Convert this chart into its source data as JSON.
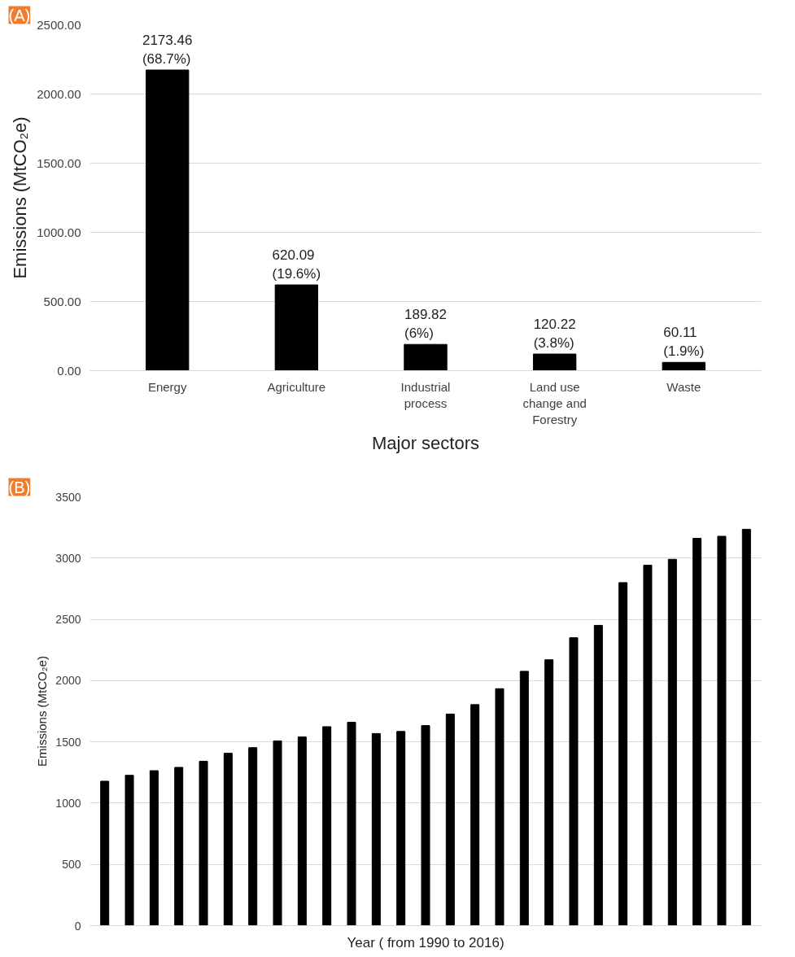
{
  "chart_data": [
    {
      "type": "bar",
      "annotations": [
        "(A)"
      ],
      "xlabel": "Major sectors",
      "ylabel": "Emissions (MtCO₂e)",
      "categories": [
        "Energy",
        "Agriculture",
        "Industrial process",
        "Land use change and Forestry",
        "Waste"
      ],
      "values": [
        2173.46,
        620.09,
        189.82,
        120.22,
        60.11
      ],
      "value_labels": [
        "2173.46\n(68.7%)",
        "620.09\n(19.6%)",
        "189.82\n(6%)",
        "120.22\n(3.8%)",
        "60.11\n(1.9%)"
      ],
      "color": "#000000",
      "ylim": [
        0,
        2500
      ],
      "yticks": [
        {
          "value": 0,
          "label": "0.00"
        },
        {
          "value": 500,
          "label": "500.00"
        },
        {
          "value": 1000,
          "label": "1000.00"
        },
        {
          "value": 1500,
          "label": "1500.00"
        },
        {
          "value": 2000,
          "label": "2000.00"
        },
        {
          "value": 2500,
          "label": "2500.00"
        }
      ],
      "grid": "y"
    },
    {
      "type": "bar",
      "annotations": [
        "(B)"
      ],
      "xlabel": "Year ( from 1990 to 2016)",
      "ylabel": "Emissions (MtCO₂e)",
      "categories": [
        null,
        null,
        null,
        null,
        null,
        null,
        null,
        null,
        null,
        null,
        null,
        null,
        null,
        null,
        null,
        null,
        null,
        null,
        null,
        null,
        null,
        null,
        null,
        null,
        null,
        null,
        null
      ],
      "values": [
        1179,
        1227,
        1265,
        1292,
        1342,
        1407,
        1453,
        1508,
        1540,
        1624,
        1660,
        1568,
        1585,
        1633,
        1727,
        1804,
        1934,
        2076,
        2170,
        2350,
        2451,
        2800,
        2942,
        2990,
        3161,
        3178,
        3235
      ],
      "color": "#000000",
      "ylim": [
        0,
        3500
      ],
      "yticks": [
        0,
        500,
        1000,
        1500,
        2000,
        2500,
        3000,
        3500
      ],
      "grid": "y",
      "tick_labels": "y"
    }
  ]
}
